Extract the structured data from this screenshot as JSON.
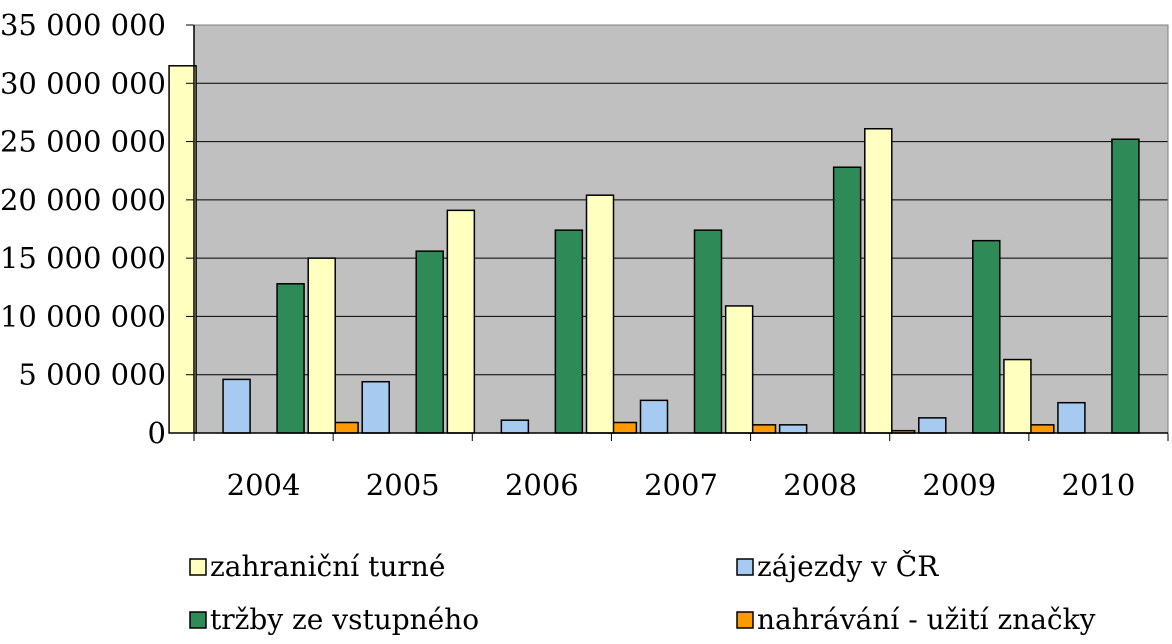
{
  "chart_data": {
    "type": "bar",
    "title": "",
    "xlabel": "",
    "ylabel": "",
    "categories": [
      "2004",
      "2005",
      "2006",
      "2007",
      "2008",
      "2009",
      "2010"
    ],
    "ylim": [
      0,
      35000000
    ],
    "yticks": [
      0,
      5000000,
      10000000,
      15000000,
      20000000,
      25000000,
      30000000,
      35000000
    ],
    "ytick_labels": [
      "0",
      "5 000 000",
      "10 000 000",
      "15 000 000",
      "20 000 000",
      "25 000 000",
      "30 000 000",
      "35 000 000"
    ],
    "grid": true,
    "plot_background": "#c0c0c0",
    "legend_position": "bottom",
    "series": [
      {
        "name": "zahraniční turné",
        "color": "#ffffc0",
        "values": [
          31500000,
          15000000,
          19100000,
          20400000,
          10900000,
          26100000,
          6300000
        ]
      },
      {
        "name": "zájezdy v ČR",
        "color": "#a6caf0",
        "values": [
          4600000,
          4400000,
          1100000,
          2800000,
          700000,
          1300000,
          2600000
        ]
      },
      {
        "name": "tržby ze vstupného",
        "color": "#2e8b57",
        "values": [
          12800000,
          15600000,
          17400000,
          17400000,
          22800000,
          16500000,
          25200000
        ]
      },
      {
        "name": "nahrávání - užití značky",
        "color": "#ff9900",
        "values": [
          900000,
          0,
          900000,
          700000,
          200000,
          700000,
          0
        ]
      }
    ]
  }
}
